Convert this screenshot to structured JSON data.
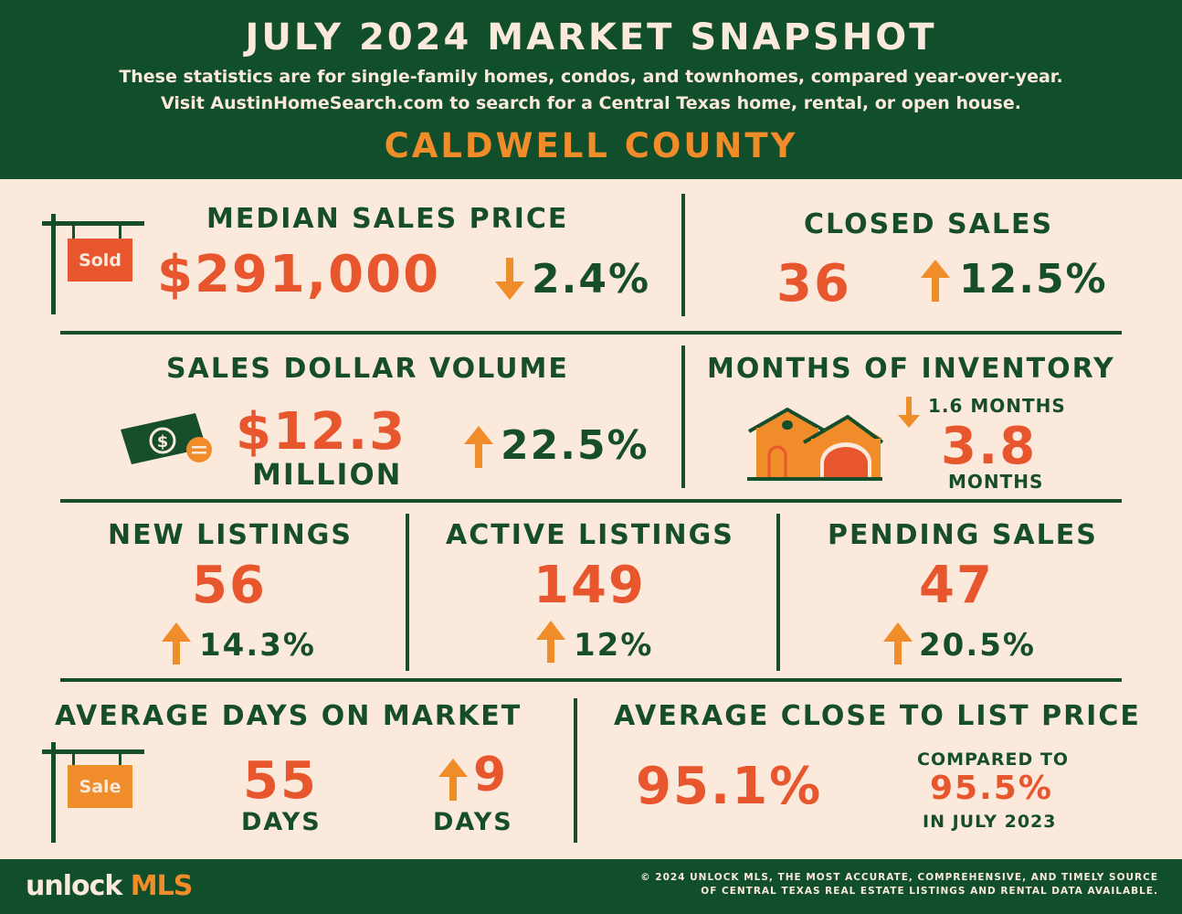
{
  "header": {
    "title": "JULY 2024 MARKET SNAPSHOT",
    "subtitle_line1": "These statistics are for single-family homes, condos, and townhomes, compared year-over-year.",
    "subtitle_line2": "Visit AustinHomeSearch.com to search for a Central Texas home, rental, or open house.",
    "county": "CALDWELL COUNTY"
  },
  "median_sales_price": {
    "title": "MEDIAN SALES PRICE",
    "value": "$291,000",
    "change": "2.4%",
    "direction": "down",
    "sign_label": "Sold"
  },
  "closed_sales": {
    "title": "CLOSED SALES",
    "value": "36",
    "change": "12.5%",
    "direction": "up"
  },
  "sales_dollar_volume": {
    "title": "SALES DOLLAR VOLUME",
    "value": "$12.3",
    "unit": "MILLION",
    "change": "22.5%",
    "direction": "up"
  },
  "months_of_inventory": {
    "title": "MONTHS OF INVENTORY",
    "change": "1.6 MONTHS",
    "direction": "down",
    "value": "3.8",
    "unit": "MONTHS"
  },
  "new_listings": {
    "title": "NEW LISTINGS",
    "value": "56",
    "change": "14.3%",
    "direction": "up"
  },
  "active_listings": {
    "title": "ACTIVE LISTINGS",
    "value": "149",
    "change": "12%",
    "direction": "up"
  },
  "pending_sales": {
    "title": "PENDING SALES",
    "value": "47",
    "change": "20.5%",
    "direction": "up"
  },
  "average_days_on_market": {
    "title": "AVERAGE DAYS ON MARKET",
    "value": "55",
    "unit": "DAYS",
    "change": "9",
    "change_unit": "DAYS",
    "direction": "up",
    "sign_label": "Sale"
  },
  "average_close_to_list": {
    "title": "AVERAGE CLOSE TO LIST PRICE",
    "value": "95.1%",
    "compared_label": "COMPARED TO",
    "compared_value": "95.5%",
    "compared_period": "IN JULY 2023"
  },
  "footer": {
    "logo_part1": "unlock",
    "logo_part2": "MLS",
    "copyright_line1": "© 2024 UNLOCK MLS, THE MOST ACCURATE, COMPREHENSIVE, AND TIMELY SOURCE",
    "copyright_line2": "OF CENTRAL TEXAS REAL ESTATE LISTINGS AND RENTAL DATA AVAILABLE."
  },
  "colors": {
    "dark_green": "#114e2b",
    "cream": "#fbe9dc",
    "red_orange": "#e8562e",
    "amber": "#f08c2a"
  }
}
